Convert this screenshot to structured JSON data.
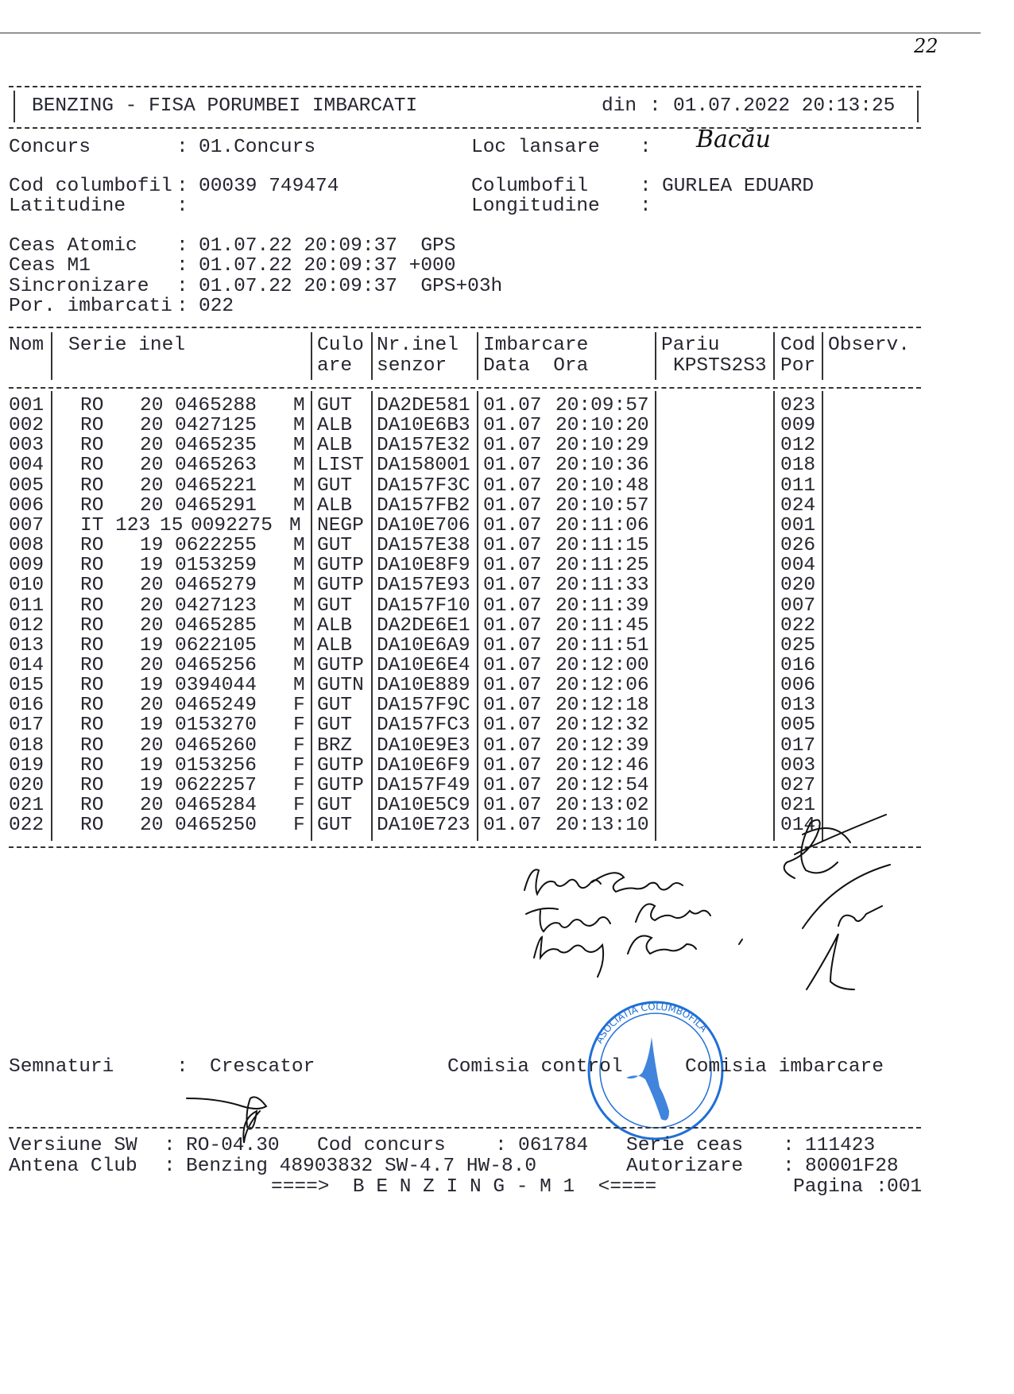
{
  "page_mark": "22",
  "header": {
    "title": "BENZING - FISA PORUMBEI IMBARCATI",
    "date_label": "din",
    "date_value": "01.07.2022 20:13:25"
  },
  "info": {
    "concurs_label": "Concurs",
    "concurs_value": "01.Concurs",
    "loc_label": "Loc lansare",
    "loc_value": "Bacău",
    "cod_label": "Cod columbofil",
    "cod_value": "00039 749474",
    "columbofil_label": "Columbofil",
    "columbofil_value": "GURLEA EDUARD",
    "lat_label": "Latitudine",
    "lat_value": "",
    "long_label": "Longitudine",
    "long_value": "",
    "ceas_atomic_label": "Ceas Atomic",
    "ceas_atomic_value": "01.07.22 20:09:37  GPS",
    "ceas_m1_label": "Ceas M1",
    "ceas_m1_value": "01.07.22 20:09:37 +000",
    "sincron_label": "Sincronizare",
    "sincron_value": "01.07.22 20:09:37  GPS+03h",
    "por_label": "Por. imbarcati",
    "por_value": "022"
  },
  "table": {
    "headers": {
      "nom": "Nom",
      "serie": "Serie inel",
      "culoare_1": "Culo",
      "culoare_2": "are",
      "senzor_1": "Nr.inel",
      "senzor_2": "senzor",
      "imbarcare_1": "Imbarcare",
      "imbarcare_2": "Data  Ora",
      "pariu_1": "Pariu",
      "pariu_2": "KPSTS2S3",
      "cod_1": "Cod",
      "cod_2": "Por",
      "observ": "Observ."
    },
    "rows": [
      {
        "nom": "001",
        "tara": "RO",
        "an": "20",
        "numar": "0465288",
        "sex": "M",
        "culoare": "GUT",
        "senzor": "DA2DE581",
        "data": "01.07",
        "ora": "20:09:57",
        "cod": "023"
      },
      {
        "nom": "002",
        "tara": "RO",
        "an": "20",
        "numar": "0427125",
        "sex": "M",
        "culoare": "ALB",
        "senzor": "DA10E6B3",
        "data": "01.07",
        "ora": "20:10:20",
        "cod": "009"
      },
      {
        "nom": "003",
        "tara": "RO",
        "an": "20",
        "numar": "0465235",
        "sex": "M",
        "culoare": "ALB",
        "senzor": "DA157E32",
        "data": "01.07",
        "ora": "20:10:29",
        "cod": "012"
      },
      {
        "nom": "004",
        "tara": "RO",
        "an": "20",
        "numar": "0465263",
        "sex": "M",
        "culoare": "LIST",
        "senzor": "DA158001",
        "data": "01.07",
        "ora": "20:10:36",
        "cod": "018"
      },
      {
        "nom": "005",
        "tara": "RO",
        "an": "20",
        "numar": "0465221",
        "sex": "M",
        "culoare": "GUT",
        "senzor": "DA157F3C",
        "data": "01.07",
        "ora": "20:10:48",
        "cod": "011"
      },
      {
        "nom": "006",
        "tara": "RO",
        "an": "20",
        "numar": "0465291",
        "sex": "M",
        "culoare": "ALB",
        "senzor": "DA157FB2",
        "data": "01.07",
        "ora": "20:10:57",
        "cod": "024"
      },
      {
        "nom": "007",
        "tara": "IT 123",
        "an": "15",
        "numar": "0092275",
        "sex": "M",
        "culoare": "NEGP",
        "senzor": "DA10E706",
        "data": "01.07",
        "ora": "20:11:06",
        "cod": "001"
      },
      {
        "nom": "008",
        "tara": "RO",
        "an": "19",
        "numar": "0622255",
        "sex": "M",
        "culoare": "GUT",
        "senzor": "DA157E38",
        "data": "01.07",
        "ora": "20:11:15",
        "cod": "026"
      },
      {
        "nom": "009",
        "tara": "RO",
        "an": "19",
        "numar": "0153259",
        "sex": "M",
        "culoare": "GUTP",
        "senzor": "DA10E8F9",
        "data": "01.07",
        "ora": "20:11:25",
        "cod": "004"
      },
      {
        "nom": "010",
        "tara": "RO",
        "an": "20",
        "numar": "0465279",
        "sex": "M",
        "culoare": "GUTP",
        "senzor": "DA157E93",
        "data": "01.07",
        "ora": "20:11:33",
        "cod": "020"
      },
      {
        "nom": "011",
        "tara": "RO",
        "an": "20",
        "numar": "0427123",
        "sex": "M",
        "culoare": "GUT",
        "senzor": "DA157F10",
        "data": "01.07",
        "ora": "20:11:39",
        "cod": "007"
      },
      {
        "nom": "012",
        "tara": "RO",
        "an": "20",
        "numar": "0465285",
        "sex": "M",
        "culoare": "ALB",
        "senzor": "DA2DE6E1",
        "data": "01.07",
        "ora": "20:11:45",
        "cod": "022"
      },
      {
        "nom": "013",
        "tara": "RO",
        "an": "19",
        "numar": "0622105",
        "sex": "M",
        "culoare": "ALB",
        "senzor": "DA10E6A9",
        "data": "01.07",
        "ora": "20:11:51",
        "cod": "025"
      },
      {
        "nom": "014",
        "tara": "RO",
        "an": "20",
        "numar": "0465256",
        "sex": "M",
        "culoare": "GUTP",
        "senzor": "DA10E6E4",
        "data": "01.07",
        "ora": "20:12:00",
        "cod": "016"
      },
      {
        "nom": "015",
        "tara": "RO",
        "an": "19",
        "numar": "0394044",
        "sex": "M",
        "culoare": "GUTN",
        "senzor": "DA10E889",
        "data": "01.07",
        "ora": "20:12:06",
        "cod": "006"
      },
      {
        "nom": "016",
        "tara": "RO",
        "an": "20",
        "numar": "0465249",
        "sex": "F",
        "culoare": "GUT",
        "senzor": "DA157F9C",
        "data": "01.07",
        "ora": "20:12:18",
        "cod": "013"
      },
      {
        "nom": "017",
        "tara": "RO",
        "an": "19",
        "numar": "0153270",
        "sex": "F",
        "culoare": "GUT",
        "senzor": "DA157FC3",
        "data": "01.07",
        "ora": "20:12:32",
        "cod": "005"
      },
      {
        "nom": "018",
        "tara": "RO",
        "an": "20",
        "numar": "0465260",
        "sex": "F",
        "culoare": "BRZ",
        "senzor": "DA10E9E3",
        "data": "01.07",
        "ora": "20:12:39",
        "cod": "017"
      },
      {
        "nom": "019",
        "tara": "RO",
        "an": "19",
        "numar": "0153256",
        "sex": "F",
        "culoare": "GUTP",
        "senzor": "DA10E6F9",
        "data": "01.07",
        "ora": "20:12:46",
        "cod": "003"
      },
      {
        "nom": "020",
        "tara": "RO",
        "an": "19",
        "numar": "0622257",
        "sex": "F",
        "culoare": "GUTP",
        "senzor": "DA157F49",
        "data": "01.07",
        "ora": "20:12:54",
        "cod": "027"
      },
      {
        "nom": "021",
        "tara": "RO",
        "an": "20",
        "numar": "0465284",
        "sex": "F",
        "culoare": "GUT",
        "senzor": "DA10E5C9",
        "data": "01.07",
        "ora": "20:13:02",
        "cod": "021"
      },
      {
        "nom": "022",
        "tara": "RO",
        "an": "20",
        "numar": "0465250",
        "sex": "F",
        "culoare": "GUT",
        "senzor": "DA10E723",
        "data": "01.07",
        "ora": "20:13:10",
        "cod": "014"
      }
    ]
  },
  "signatures": {
    "label": "Semnaturi",
    "crescator": "Crescator",
    "comisia_control": "Comisia control",
    "comisia_imbarcare": "Comisia imbarcare"
  },
  "stamp": {
    "text": "ASOCIATIA COLUMBOFILA",
    "color": "#1f6fd6"
  },
  "footer": {
    "versiune_label": "Versiune SW",
    "versiune_value": "RO-04.30",
    "cod_concurs_label": "Cod concurs",
    "cod_concurs_value": "061784",
    "serie_ceas_label": "Serie ceas",
    "serie_ceas_value": "111423",
    "antena_label": "Antena Club",
    "antena_value": "Benzing 48903832 SW-4.7 HW-8.0",
    "autorizare_label": "Autorizare",
    "autorizare_value": "80001F28",
    "banner": "====>  B E N Z I N G - M 1  <====",
    "pagina_label": "Pagina",
    "pagina_value": "001"
  }
}
